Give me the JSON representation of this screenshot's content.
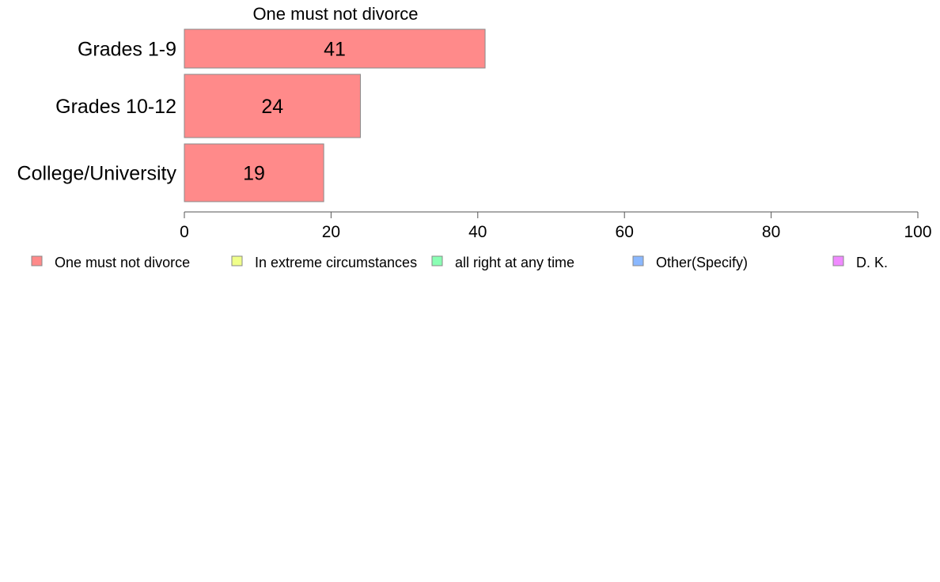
{
  "chart_data": {
    "type": "bar",
    "orientation": "horizontal",
    "title": "One must not divorce",
    "categories": [
      "Grades 1-9",
      "Grades 10-12",
      "College/University"
    ],
    "series": [
      {
        "name": "One must not divorce",
        "values": [
          41,
          24,
          19
        ],
        "color": "#ff8a8a"
      }
    ],
    "data_labels": [
      "41",
      "24",
      "19"
    ],
    "xlim": [
      0,
      100
    ],
    "xticks": [
      0,
      20,
      40,
      60,
      80,
      100
    ],
    "xtick_labels": [
      "0",
      "20",
      "40",
      "60",
      "80",
      "100"
    ],
    "grid": false,
    "legend_position": "bottom",
    "legend": [
      {
        "label": "One must not divorce",
        "color": "#ff8a8a"
      },
      {
        "label": "In extreme circumstances",
        "color": "#f0ff8a"
      },
      {
        "label": "all right at any time",
        "color": "#8affb4"
      },
      {
        "label": "Other(Specify)",
        "color": "#8ab8ff"
      },
      {
        "label": "D. K.",
        "color": "#f08aff"
      }
    ]
  }
}
